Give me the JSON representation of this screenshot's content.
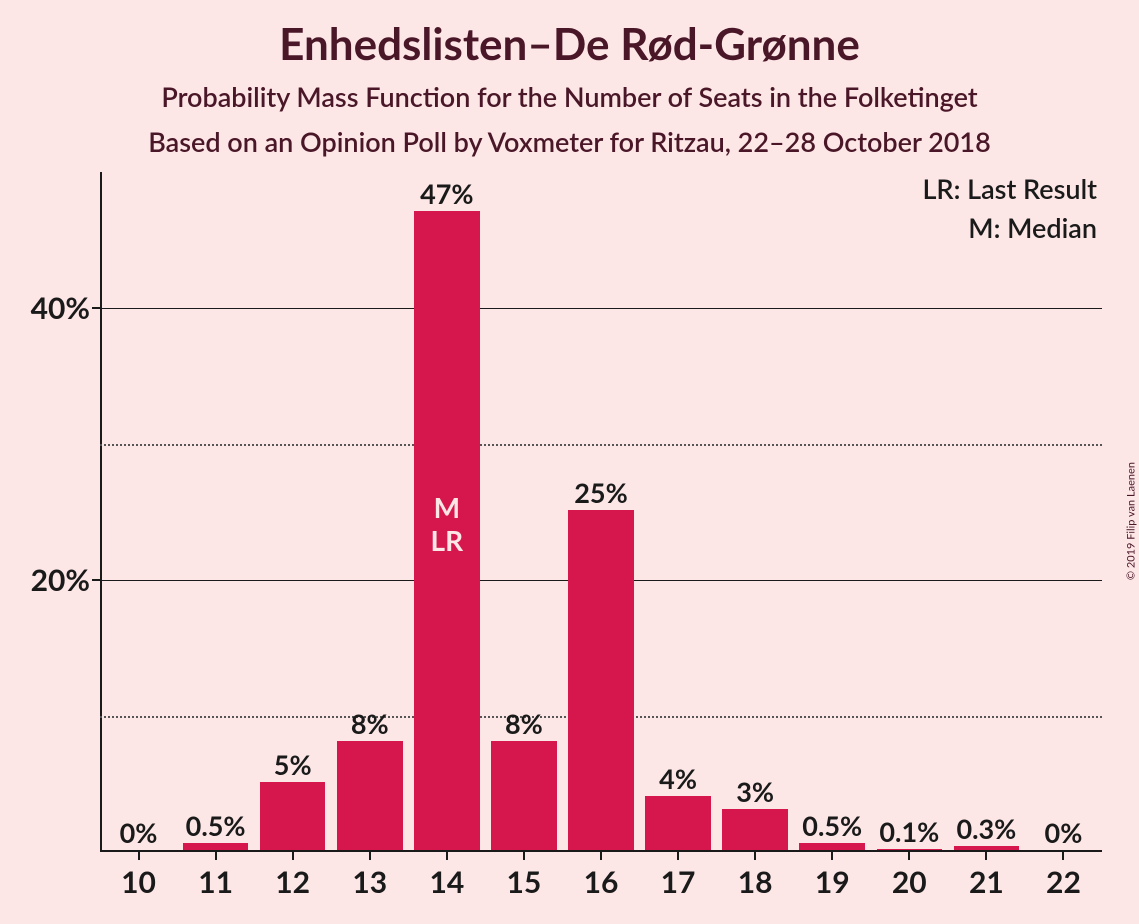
{
  "title": "Enhedslisten–De Rød-Grønne",
  "subtitle1": "Probability Mass Function for the Number of Seats in the Folketinget",
  "subtitle2": "Based on an Opinion Poll by Voxmeter for Ritzau, 22–28 October 2018",
  "copyright": "© 2019 Filip van Laenen",
  "legend": {
    "lr": "LR: Last Result",
    "m": "M: Median"
  },
  "chart": {
    "type": "bar",
    "bar_color": "#d6174e",
    "background_color": "#fce6e6",
    "text_color": "#1a1a1a",
    "title_color": "#4a1728",
    "title_fontsize": 44,
    "subtitle_fontsize": 27,
    "label_fontsize": 27,
    "axis_fontsize": 30,
    "y_max": 50,
    "y_ticks_major": [
      20,
      40
    ],
    "y_ticks_minor": [
      10,
      30
    ],
    "y_ticks_major_labels": [
      "20%",
      "40%"
    ],
    "categories": [
      "10",
      "11",
      "12",
      "13",
      "14",
      "15",
      "16",
      "17",
      "18",
      "19",
      "20",
      "21",
      "22"
    ],
    "values": [
      0,
      0.5,
      5,
      8,
      47,
      8,
      25,
      4,
      3,
      0.5,
      0.1,
      0.3,
      0
    ],
    "value_labels": [
      "0%",
      "0.5%",
      "5%",
      "8%",
      "47%",
      "8%",
      "25%",
      "4%",
      "3%",
      "0.5%",
      "0.1%",
      "0.3%",
      "0%"
    ],
    "median_index": 4,
    "lr_index": 4,
    "median_symbol": "M",
    "lr_symbol": "LR",
    "bar_width_ratio": 0.85
  }
}
